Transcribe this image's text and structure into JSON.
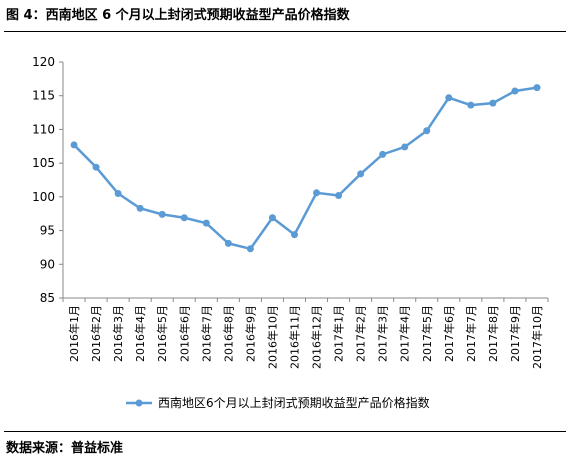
{
  "figure": {
    "title": "图 4：西南地区 6 个月以上封闭式预期收益型产品价格指数",
    "source": "数据来源：普益标准"
  },
  "chart_data": {
    "type": "line",
    "title": "",
    "xlabel": "",
    "ylabel": "",
    "ylim": [
      85,
      120
    ],
    "yticks": [
      85,
      90,
      95,
      100,
      105,
      110,
      115,
      120
    ],
    "grid": false,
    "legend_position": "bottom",
    "categories": [
      "2016年1月",
      "2016年2月",
      "2016年3月",
      "2016年4月",
      "2016年5月",
      "2016年6月",
      "2016年7月",
      "2016年8月",
      "2016年9月",
      "2016年10月",
      "2016年11月",
      "2016年12月",
      "2017年1月",
      "2017年2月",
      "2017年3月",
      "2017年4月",
      "2017年5月",
      "2017年6月",
      "2017年7月",
      "2017年8月",
      "2017年9月",
      "2017年10月"
    ],
    "series": [
      {
        "name": "西南地区6个月以上封闭式预期收益型产品价格指数",
        "color": "#5B9BD5",
        "values": [
          107.7,
          104.4,
          100.5,
          98.3,
          97.4,
          96.9,
          96.1,
          93.1,
          92.3,
          96.9,
          94.4,
          100.6,
          100.2,
          103.4,
          106.3,
          107.4,
          109.8,
          114.7,
          113.6,
          113.9,
          115.7,
          116.2
        ]
      }
    ]
  }
}
